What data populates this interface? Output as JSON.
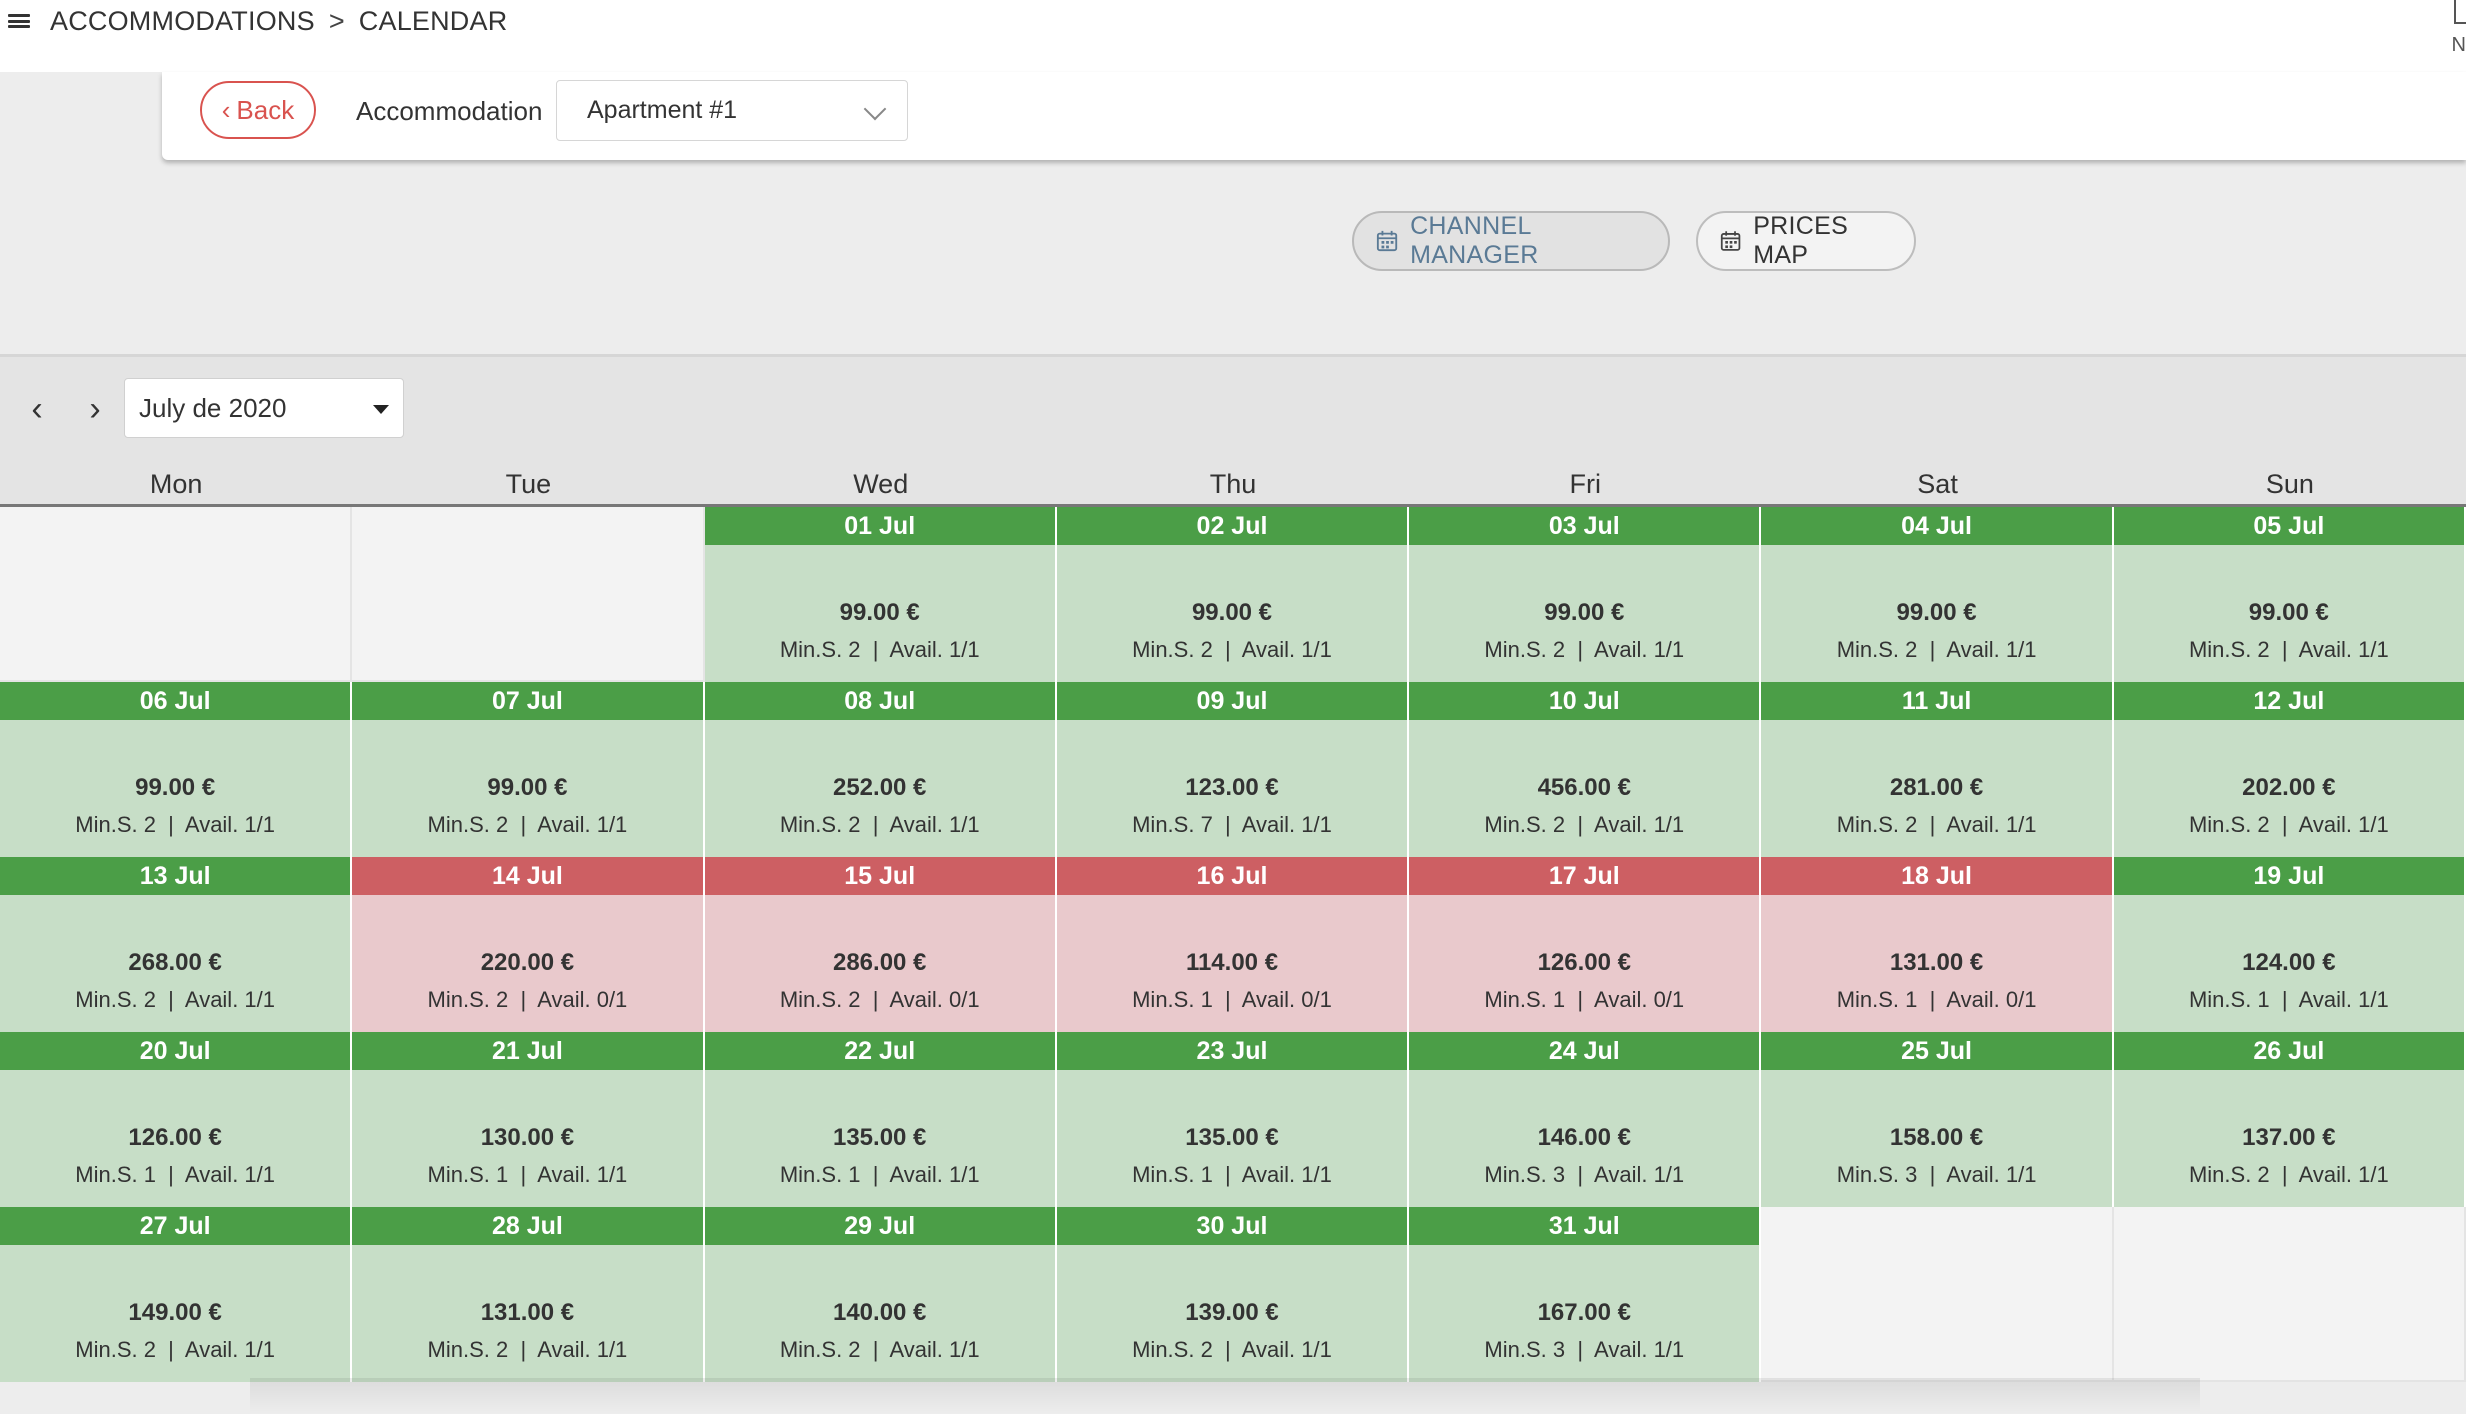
{
  "header": {
    "breadcrumb": [
      "ACCOMMODATIONS",
      "CALENDAR"
    ],
    "separator": ">",
    "corner_letter": "N"
  },
  "toolbar": {
    "back_label": "Back",
    "accommodation_label": "Accommodation",
    "accommodation_value": "Apartment #1"
  },
  "actions": {
    "channel_manager": "CHANNEL MANAGER",
    "prices_map": "PRICES MAP"
  },
  "calendar": {
    "month": "July de 2020",
    "weekdays": [
      "Mon",
      "Tue",
      "Wed",
      "Thu",
      "Fri",
      "Sat",
      "Sun"
    ],
    "leading_blanks": 2,
    "trailing_blanks": 2,
    "colors": {
      "available_head": "#4b9e47",
      "available_body": "#c7dec7",
      "booked_head": "#cd5f63",
      "booked_body": "#e9c9cc"
    },
    "days": [
      {
        "date": "01 Jul",
        "price": "99.00 €",
        "info": "Min.S. 2  |  Avail. 1/1",
        "status": "available"
      },
      {
        "date": "02 Jul",
        "price": "99.00 €",
        "info": "Min.S. 2  |  Avail. 1/1",
        "status": "available"
      },
      {
        "date": "03 Jul",
        "price": "99.00 €",
        "info": "Min.S. 2  |  Avail. 1/1",
        "status": "available"
      },
      {
        "date": "04 Jul",
        "price": "99.00 €",
        "info": "Min.S. 2  |  Avail. 1/1",
        "status": "available"
      },
      {
        "date": "05 Jul",
        "price": "99.00 €",
        "info": "Min.S. 2  |  Avail. 1/1",
        "status": "available"
      },
      {
        "date": "06 Jul",
        "price": "99.00 €",
        "info": "Min.S. 2  |  Avail. 1/1",
        "status": "available"
      },
      {
        "date": "07 Jul",
        "price": "99.00 €",
        "info": "Min.S. 2  |  Avail. 1/1",
        "status": "available"
      },
      {
        "date": "08 Jul",
        "price": "252.00 €",
        "info": "Min.S. 2  |  Avail. 1/1",
        "status": "available"
      },
      {
        "date": "09 Jul",
        "price": "123.00 €",
        "info": "Min.S. 7  |  Avail. 1/1",
        "status": "available"
      },
      {
        "date": "10 Jul",
        "price": "456.00 €",
        "info": "Min.S. 2  |  Avail. 1/1",
        "status": "available"
      },
      {
        "date": "11 Jul",
        "price": "281.00 €",
        "info": "Min.S. 2  |  Avail. 1/1",
        "status": "available"
      },
      {
        "date": "12 Jul",
        "price": "202.00 €",
        "info": "Min.S. 2  |  Avail. 1/1",
        "status": "available"
      },
      {
        "date": "13 Jul",
        "price": "268.00 €",
        "info": "Min.S. 2  |  Avail. 1/1",
        "status": "available"
      },
      {
        "date": "14 Jul",
        "price": "220.00 €",
        "info": "Min.S. 2  |  Avail. 0/1",
        "status": "booked"
      },
      {
        "date": "15 Jul",
        "price": "286.00 €",
        "info": "Min.S. 2  |  Avail. 0/1",
        "status": "booked"
      },
      {
        "date": "16 Jul",
        "price": "114.00 €",
        "info": "Min.S. 1  |  Avail. 0/1",
        "status": "booked"
      },
      {
        "date": "17 Jul",
        "price": "126.00 €",
        "info": "Min.S. 1  |  Avail. 0/1",
        "status": "booked"
      },
      {
        "date": "18 Jul",
        "price": "131.00 €",
        "info": "Min.S. 1  |  Avail. 0/1",
        "status": "booked"
      },
      {
        "date": "19 Jul",
        "price": "124.00 €",
        "info": "Min.S. 1  |  Avail. 1/1",
        "status": "available"
      },
      {
        "date": "20 Jul",
        "price": "126.00 €",
        "info": "Min.S. 1  |  Avail. 1/1",
        "status": "available"
      },
      {
        "date": "21 Jul",
        "price": "130.00 €",
        "info": "Min.S. 1  |  Avail. 1/1",
        "status": "available"
      },
      {
        "date": "22 Jul",
        "price": "135.00 €",
        "info": "Min.S. 1  |  Avail. 1/1",
        "status": "available"
      },
      {
        "date": "23 Jul",
        "price": "135.00 €",
        "info": "Min.S. 1  |  Avail. 1/1",
        "status": "available"
      },
      {
        "date": "24 Jul",
        "price": "146.00 €",
        "info": "Min.S. 3  |  Avail. 1/1",
        "status": "available"
      },
      {
        "date": "25 Jul",
        "price": "158.00 €",
        "info": "Min.S. 3  |  Avail. 1/1",
        "status": "available"
      },
      {
        "date": "26 Jul",
        "price": "137.00 €",
        "info": "Min.S. 2  |  Avail. 1/1",
        "status": "available"
      },
      {
        "date": "27 Jul",
        "price": "149.00 €",
        "info": "Min.S. 2  |  Avail. 1/1",
        "status": "available"
      },
      {
        "date": "28 Jul",
        "price": "131.00 €",
        "info": "Min.S. 2  |  Avail. 1/1",
        "status": "available"
      },
      {
        "date": "29 Jul",
        "price": "140.00 €",
        "info": "Min.S. 2  |  Avail. 1/1",
        "status": "available"
      },
      {
        "date": "30 Jul",
        "price": "139.00 €",
        "info": "Min.S. 2  |  Avail. 1/1",
        "status": "available"
      },
      {
        "date": "31 Jul",
        "price": "167.00 €",
        "info": "Min.S. 3  |  Avail. 1/1",
        "status": "available"
      }
    ]
  },
  "icons": {
    "menu": "hamburger-icon",
    "back": "chevron-left-icon",
    "select": "chevron-down-icon",
    "calendar": "calendar-icon",
    "prev": "chevron-left-icon",
    "next": "chevron-right-icon"
  }
}
